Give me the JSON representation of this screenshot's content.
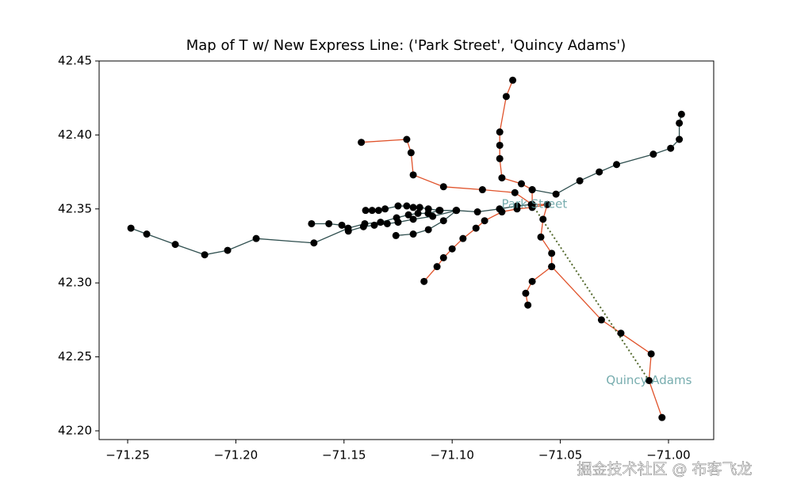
{
  "chart_data": {
    "type": "map",
    "title": "Map of T w/ New Express Line: ('Park Street', 'Quincy Adams')",
    "xlim": [
      -71.2632,
      -70.9791
    ],
    "ylim": [
      42.1941,
      42.45
    ],
    "xticks": [
      {
        "value": -71.25,
        "label": "−71.25"
      },
      {
        "value": -71.2,
        "label": "−71.20"
      },
      {
        "value": -71.15,
        "label": "−71.15"
      },
      {
        "value": -71.1,
        "label": "−71.10"
      },
      {
        "value": -71.05,
        "label": "−71.05"
      },
      {
        "value": -71.0,
        "label": "−71.00"
      }
    ],
    "yticks": [
      {
        "value": 42.2,
        "label": "42.20"
      },
      {
        "value": 42.25,
        "label": "42.25"
      },
      {
        "value": 42.3,
        "label": "42.30"
      },
      {
        "value": 42.35,
        "label": "42.35"
      },
      {
        "value": 42.4,
        "label": "42.40"
      },
      {
        "value": 42.45,
        "label": "42.45"
      }
    ],
    "marker_color": "#000000",
    "series": [
      {
        "color": "#2f4f4f",
        "x": [
          -71.2485,
          -71.2412,
          -71.228,
          -71.2144,
          -71.2038,
          -71.1906,
          -71.1639,
          -71.1481,
          -71.1404,
          -71.1331,
          -71.1257,
          -71.1202,
          -71.1158,
          -71.1111,
          -71.1056,
          -71.0982,
          -71.0883,
          -71.0781,
          -71.07,
          -71.0634
        ],
        "values": [
          42.337,
          42.333,
          42.326,
          42.319,
          42.322,
          42.33,
          42.327,
          42.337,
          42.34,
          42.341,
          42.344,
          42.346,
          42.347,
          42.347,
          42.349,
          42.349,
          42.348,
          42.35,
          42.352,
          42.353
        ]
      },
      {
        "color": "#2f4f4f",
        "x": [
          -71.165,
          -71.157,
          -71.151,
          -71.148,
          -71.141,
          -71.136,
          -71.13,
          -71.125,
          -71.118,
          -71.109,
          -71.098
        ],
        "values": [
          42.34,
          42.34,
          42.339,
          42.335,
          42.338,
          42.339,
          42.34,
          42.341,
          42.343,
          42.345,
          42.349
        ]
      },
      {
        "color": "#2f4f4f",
        "x": [
          -71.126,
          -71.118,
          -71.111,
          -71.104,
          -71.098
        ],
        "values": [
          42.332,
          42.333,
          42.336,
          42.342,
          42.349
        ]
      },
      {
        "color": "#2f4f4f",
        "x": [
          -71.14,
          -71.137,
          -71.134,
          -71.131,
          -71.125,
          -71.121,
          -71.118,
          -71.115,
          -71.111,
          -71.106
        ],
        "values": [
          42.349,
          42.349,
          42.349,
          42.35,
          42.352,
          42.352,
          42.351,
          42.351,
          42.35,
          42.349
        ]
      },
      {
        "color": "#2f4f4f",
        "x": [
          -71.063,
          -71.052,
          -71.041,
          -71.032,
          -71.024,
          -71.007,
          -70.999,
          -70.995,
          -70.995,
          -70.994
        ],
        "values": [
          42.363,
          42.36,
          42.369,
          42.375,
          42.38,
          42.387,
          42.391,
          42.397,
          42.408,
          42.414
        ]
      },
      {
        "color": "#e0522a",
        "x": [
          -71.072,
          -71.075,
          -71.078,
          -71.078,
          -71.078,
          -71.077,
          -71.068,
          -71.063,
          -71.063
        ],
        "values": [
          42.437,
          42.426,
          42.402,
          42.393,
          42.384,
          42.371,
          42.367,
          42.363,
          42.353
        ]
      },
      {
        "color": "#e0522a",
        "x": [
          -71.142,
          -71.121,
          -71.119,
          -71.118,
          -71.104,
          -71.086,
          -71.071,
          -71.063,
          -71.056,
          -71.058,
          -71.059,
          -71.054,
          -71.054,
          -71.063,
          -71.066,
          -71.065
        ],
        "values": [
          42.395,
          42.397,
          42.388,
          42.373,
          42.365,
          42.363,
          42.361,
          42.353,
          42.353,
          42.343,
          42.331,
          42.32,
          42.311,
          42.301,
          42.293,
          42.285
        ]
      },
      {
        "color": "#e0522a",
        "x": [
          -71.054,
          -71.031,
          -71.022,
          -71.008,
          -71.009,
          -71.003
        ],
        "values": [
          42.311,
          42.275,
          42.266,
          42.252,
          42.234,
          42.209
        ]
      },
      {
        "color": "#e0522a",
        "x": [
          -71.113,
          -71.107,
          -71.104,
          -71.1,
          -71.095,
          -71.089,
          -71.085,
          -71.077,
          -71.07,
          -71.063,
          -71.056
        ],
        "values": [
          42.301,
          42.311,
          42.317,
          42.323,
          42.33,
          42.337,
          42.342,
          42.348,
          42.35,
          42.351,
          42.353
        ]
      },
      {
        "color": "#556b2f",
        "linestyle": "dotted",
        "x": [
          -71.063,
          -71.009
        ],
        "values": [
          42.353,
          42.234
        ]
      }
    ],
    "annotations": [
      {
        "text": "Park Street",
        "x": -71.062,
        "y": 42.353
      },
      {
        "text": "Quincy Adams",
        "x": -71.009,
        "y": 42.234
      }
    ],
    "watermark": "掘金技术社区 @ 布客飞龙"
  }
}
